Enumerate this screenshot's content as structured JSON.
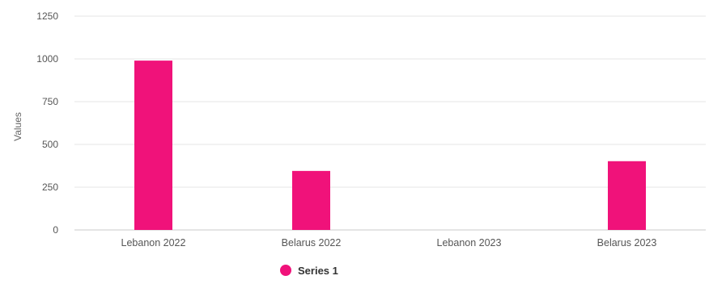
{
  "chart_data": {
    "type": "bar",
    "categories": [
      "Lebanon 2022",
      "Belarus 2022",
      "Lebanon 2023",
      "Belarus 2023"
    ],
    "series": [
      {
        "name": "Series 1",
        "values": [
          990,
          345,
          0,
          402
        ],
        "color": "#f0127a"
      }
    ],
    "ylabel": "Values",
    "xlabel": "",
    "ylim": [
      0,
      1250
    ],
    "yticks": [
      0,
      250,
      500,
      750,
      1000,
      1250
    ],
    "grid": true,
    "legend_position": "bottom-center"
  }
}
